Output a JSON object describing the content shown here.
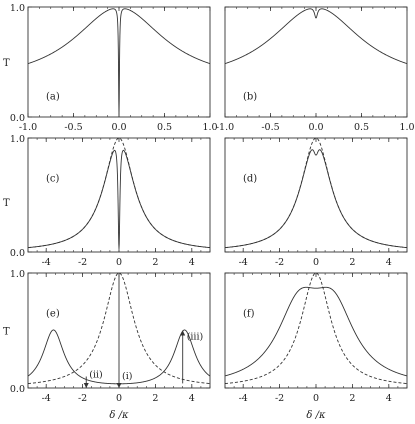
{
  "chart_data": [
    {
      "panel": "(a)",
      "type": "line",
      "ylabel": "T",
      "xlim": [
        -1.0,
        1.0
      ],
      "ylim": [
        0.0,
        1.0
      ],
      "xticks": [
        -1.0,
        -0.5,
        0.0,
        0.5,
        1.0
      ],
      "xtick_labels": [
        "-1.0",
        "-0.5",
        "0.0",
        "0.5",
        "1.0"
      ],
      "yticks": [
        0.0,
        1.0
      ],
      "ytick_labels": [
        "0.0",
        "1.0"
      ],
      "series": [
        {
          "style": "solid",
          "model": "lorentz_dip",
          "params": {
            "w": 0.6,
            "a": 0.3,
            "d": 0.985,
            "e": 0.0,
            "g": 0.006
          }
        }
      ]
    },
    {
      "panel": "(b)",
      "type": "line",
      "xlim": [
        -1.0,
        1.0
      ],
      "ylim": [
        0.0,
        1.0
      ],
      "xticks": [
        -1.0,
        -0.5,
        0.0,
        0.5,
        1.0
      ],
      "xtick_labels": [
        "-1.0",
        "-0.5",
        "0.0",
        "0.5",
        "1.0"
      ],
      "yticks": [
        0.0,
        1.0
      ],
      "ytick_labels": [],
      "series": [
        {
          "style": "solid",
          "model": "lorentz_dip",
          "params": {
            "w": 0.6,
            "a": 0.3,
            "d": 0.1,
            "e": 0.0,
            "g": 0.02
          }
        }
      ]
    },
    {
      "panel": "(c)",
      "type": "line",
      "ylabel": "T",
      "xlim": [
        -5,
        5
      ],
      "ylim": [
        0.0,
        1.0
      ],
      "xticks": [
        -4,
        -2,
        0,
        2,
        4
      ],
      "xtick_labels": [
        "-4",
        "-2",
        "0",
        "2",
        "4"
      ],
      "yticks": [
        0.0,
        1.0
      ],
      "ytick_labels": [
        "0.0",
        "1.0"
      ],
      "series": [
        {
          "style": "solid",
          "model": "lorentz_dip",
          "params": {
            "w": 1.0,
            "a": 0.0,
            "d": 0.97,
            "e": 0.0,
            "g": 0.06
          }
        },
        {
          "style": "dashed",
          "model": "lorentz_dip",
          "params": {
            "w": 1.0,
            "a": 0.0,
            "d": 0.0,
            "e": 0.0,
            "g": 0.1
          }
        }
      ]
    },
    {
      "panel": "(d)",
      "type": "line",
      "xlim": [
        -5,
        5
      ],
      "ylim": [
        0.0,
        1.0
      ],
      "xticks": [
        -4,
        -2,
        0,
        2,
        4
      ],
      "xtick_labels": [
        "-4",
        "-2",
        "0",
        "2",
        "4"
      ],
      "yticks": [
        0.0,
        1.0
      ],
      "ytick_labels": [],
      "series": [
        {
          "style": "solid",
          "model": "lorentz_dip",
          "params": {
            "w": 1.0,
            "a": 0.0,
            "d": 0.15,
            "e": 0.0,
            "g": 0.18
          }
        },
        {
          "style": "dashed",
          "model": "lorentz_dip",
          "params": {
            "w": 1.0,
            "a": 0.0,
            "d": 0.0,
            "e": 0.0,
            "g": 0.1
          }
        }
      ]
    },
    {
      "panel": "(e)",
      "type": "line",
      "ylabel": "T",
      "xlabel": "δ /κ",
      "xlim": [
        -5,
        5
      ],
      "ylim": [
        0.0,
        1.0
      ],
      "xticks": [
        -4,
        -2,
        0,
        2,
        4
      ],
      "xtick_labels": [
        "-4",
        "-2",
        "0",
        "2",
        "4"
      ],
      "yticks": [
        0.0,
        1.0
      ],
      "ytick_labels": [
        "0.0",
        "1.0"
      ],
      "series": [
        {
          "style": "solid",
          "model": "double_lorentz",
          "params": {
            "w": 0.7,
            "c": 3.6,
            "h": 0.5
          }
        },
        {
          "style": "dashed",
          "model": "lorentz_dip",
          "params": {
            "w": 1.0,
            "a": 0.0,
            "d": 0.0,
            "e": 0.0,
            "g": 0.1
          }
        }
      ],
      "annotations": [
        {
          "text": "(i)",
          "x": 0.0,
          "y_from": 1.0,
          "y_to": 0.0
        },
        {
          "text": "(ii)",
          "x": -1.8,
          "y_from": 0.1,
          "y_to": 0.0
        },
        {
          "text": "(iii)",
          "x": 3.5,
          "y_from": 0.04,
          "y_to": 0.5
        }
      ]
    },
    {
      "panel": "(f)",
      "type": "line",
      "xlabel": "δ /κ",
      "xlim": [
        -5,
        5
      ],
      "ylim": [
        0.0,
        1.0
      ],
      "xticks": [
        -4,
        -2,
        0,
        2,
        4
      ],
      "xtick_labels": [
        "-4",
        "-2",
        "0",
        "2",
        "4"
      ],
      "yticks": [
        0.0,
        1.0
      ],
      "ytick_labels": [],
      "series": [
        {
          "style": "solid",
          "model": "double_lorentz",
          "params": {
            "w": 1.45,
            "c": 0.95,
            "h": 0.62
          }
        },
        {
          "style": "dashed",
          "model": "lorentz_dip",
          "params": {
            "w": 1.0,
            "a": 0.0,
            "d": 0.0,
            "e": 0.0,
            "g": 0.1
          }
        }
      ]
    }
  ]
}
